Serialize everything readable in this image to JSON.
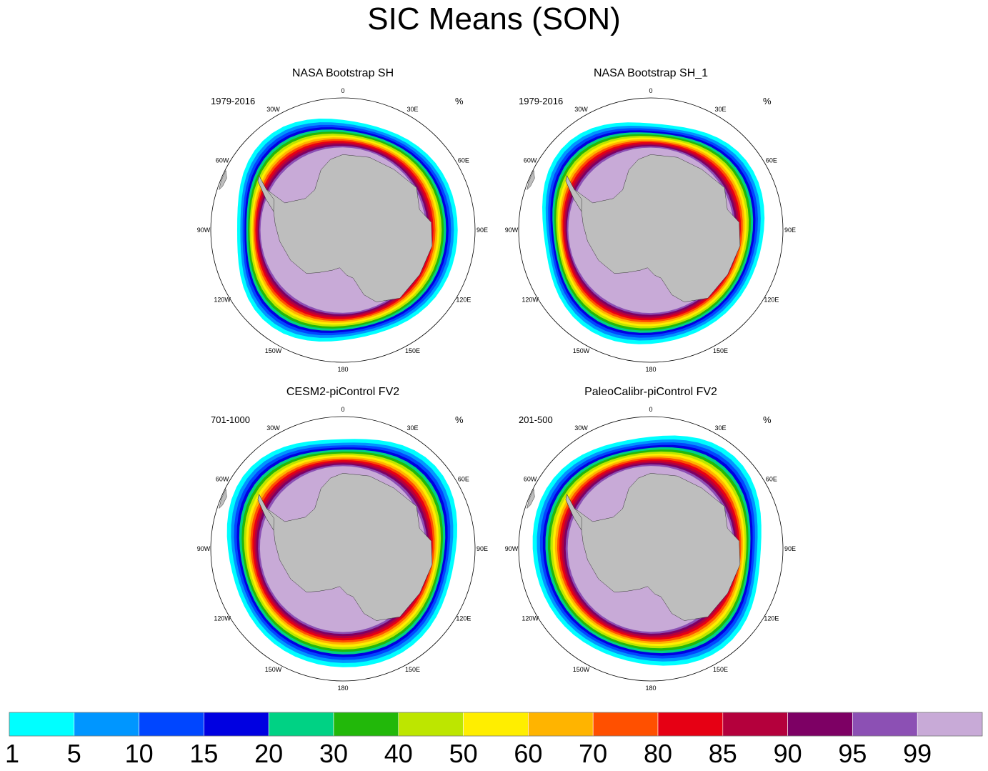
{
  "title": "SIC Means (SON)",
  "chart_data": {
    "type": "polar_contour",
    "title": "SIC Means (SON)",
    "variable": "Sea ice concentration",
    "units": "%",
    "season": "SON",
    "levels": [
      1,
      5,
      10,
      15,
      20,
      30,
      40,
      50,
      60,
      70,
      80,
      85,
      90,
      95,
      99
    ],
    "colors": [
      "#00ffff",
      "#0096ff",
      "#0046ff",
      "#0000e1",
      "#00d284",
      "#22b80a",
      "#bde600",
      "#ffee00",
      "#ffb400",
      "#ff5000",
      "#e60014",
      "#b4003c",
      "#7d0064",
      "#8c50b4",
      "#c8aad7"
    ],
    "land_color": "#bebebe",
    "panels": [
      {
        "title": "NASA Bootstrap SH",
        "years": "1979-2016",
        "units": "%",
        "ice_edge_lat_range": [
          -62,
          -58
        ]
      },
      {
        "title": "NASA Bootstrap SH_1",
        "years": "1979-2016",
        "units": "%",
        "ice_edge_lat_range": [
          -62,
          -58
        ]
      },
      {
        "title": "CESM2-piControl FV2",
        "years": "701-1000",
        "units": "%",
        "ice_edge_lat_range": [
          -61,
          -57
        ]
      },
      {
        "title": "PaleoCalibr-piControl FV2",
        "years": "201-500",
        "units": "%",
        "ice_edge_lat_range": [
          -61,
          -57
        ]
      }
    ],
    "longitude_labels": [
      "0",
      "30E",
      "60E",
      "90E",
      "120E",
      "150E",
      "180",
      "150W",
      "120W",
      "90W",
      "60W",
      "30W"
    ]
  }
}
